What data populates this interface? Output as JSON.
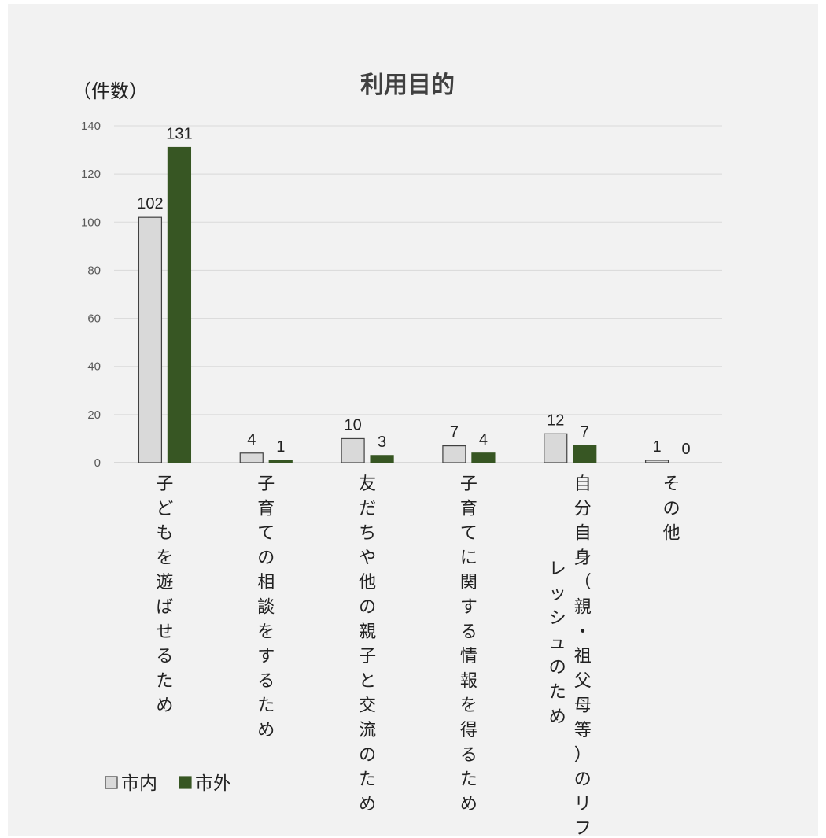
{
  "chart_data": {
    "type": "bar",
    "title": "利用目的",
    "ylabel": "（件数）",
    "ylim": [
      0,
      140
    ],
    "yticks": [
      0,
      20,
      40,
      60,
      80,
      100,
      120,
      140
    ],
    "grid": true,
    "legend_position": "bottom-left",
    "categories": [
      [
        "子どもを遊ばせるため"
      ],
      [
        "子育ての相談をするため"
      ],
      [
        "友だちや他の親子と交流のため"
      ],
      [
        "子育てに関する情報を得るため"
      ],
      [
        "自分自身（親・祖父母等）のリフ",
        "レッシュのため"
      ],
      [
        "その他"
      ]
    ],
    "series": [
      {
        "name": "市内",
        "values": [
          102,
          4,
          10,
          7,
          12,
          1
        ],
        "color": "#d9d9d9",
        "stroke": "#404040"
      },
      {
        "name": "市外",
        "values": [
          131,
          1,
          3,
          4,
          7,
          0
        ],
        "color": "#375623",
        "stroke": "#375623"
      }
    ]
  }
}
